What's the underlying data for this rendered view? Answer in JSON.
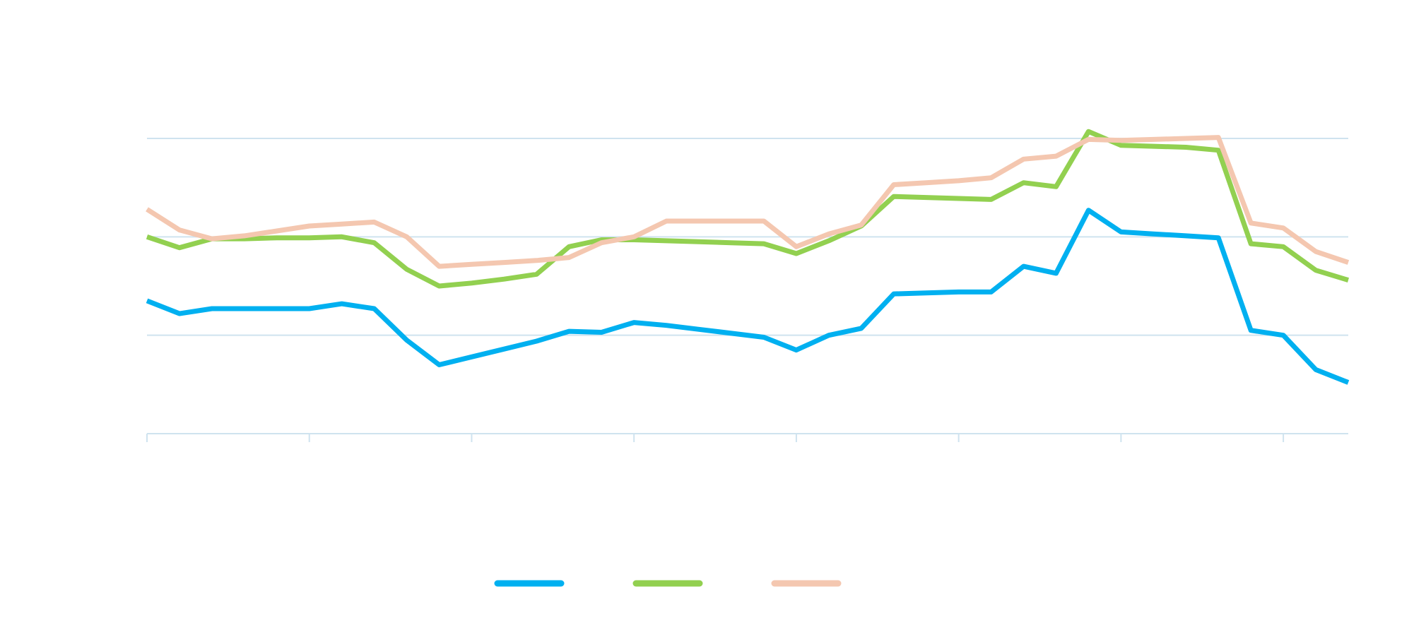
{
  "chart_data": {
    "type": "line",
    "title": "",
    "xlabel": "",
    "ylabel": "",
    "x": [
      0,
      1,
      2,
      3,
      4,
      5,
      6,
      7,
      8,
      9,
      10,
      11,
      12,
      13,
      14,
      15,
      16,
      17,
      18,
      19,
      20,
      21,
      22,
      23,
      24,
      25,
      26,
      27,
      28,
      29,
      30,
      31,
      32,
      33,
      34,
      35,
      36,
      37
    ],
    "xlim": [
      0,
      37
    ],
    "ylim": [
      0,
      3
    ],
    "y_gridlines": [
      1,
      2,
      3
    ],
    "x_ticks": [
      0,
      5,
      10,
      15,
      20,
      25,
      30,
      35
    ],
    "grid": true,
    "legend_position": "bottom",
    "series": [
      {
        "color": "#00b0f0",
        "values": [
          1.35,
          1.22,
          1.27,
          1.27,
          1.27,
          1.27,
          1.32,
          1.27,
          0.95,
          0.7,
          0.78,
          0.86,
          0.94,
          1.04,
          1.03,
          1.13,
          1.1,
          1.06,
          1.02,
          0.98,
          0.85,
          1.0,
          1.07,
          1.42,
          1.43,
          1.44,
          1.44,
          1.7,
          1.63,
          2.27,
          2.05,
          2.03,
          2.01,
          1.99,
          1.05,
          1.0,
          0.65,
          0.52
        ]
      },
      {
        "color": "#92d050",
        "values": [
          2.0,
          1.89,
          1.98,
          1.98,
          1.99,
          1.99,
          2.0,
          1.94,
          1.67,
          1.5,
          1.53,
          1.57,
          1.62,
          1.9,
          1.97,
          1.97,
          1.96,
          1.95,
          1.94,
          1.93,
          1.83,
          1.96,
          2.11,
          2.41,
          2.4,
          2.39,
          2.38,
          2.55,
          2.51,
          3.07,
          2.93,
          2.92,
          2.91,
          2.88,
          1.93,
          1.9,
          1.66,
          1.56
        ]
      },
      {
        "color": "#f4c7b0",
        "values": [
          2.28,
          2.07,
          1.98,
          2.01,
          2.06,
          2.11,
          2.13,
          2.15,
          2.0,
          1.7,
          1.72,
          1.74,
          1.76,
          1.79,
          1.94,
          2.0,
          2.16,
          2.16,
          2.16,
          2.16,
          1.9,
          2.03,
          2.12,
          2.53,
          2.55,
          2.57,
          2.6,
          2.79,
          2.82,
          2.99,
          2.98,
          2.99,
          3.0,
          3.01,
          2.14,
          2.09,
          1.85,
          1.74
        ]
      }
    ]
  }
}
